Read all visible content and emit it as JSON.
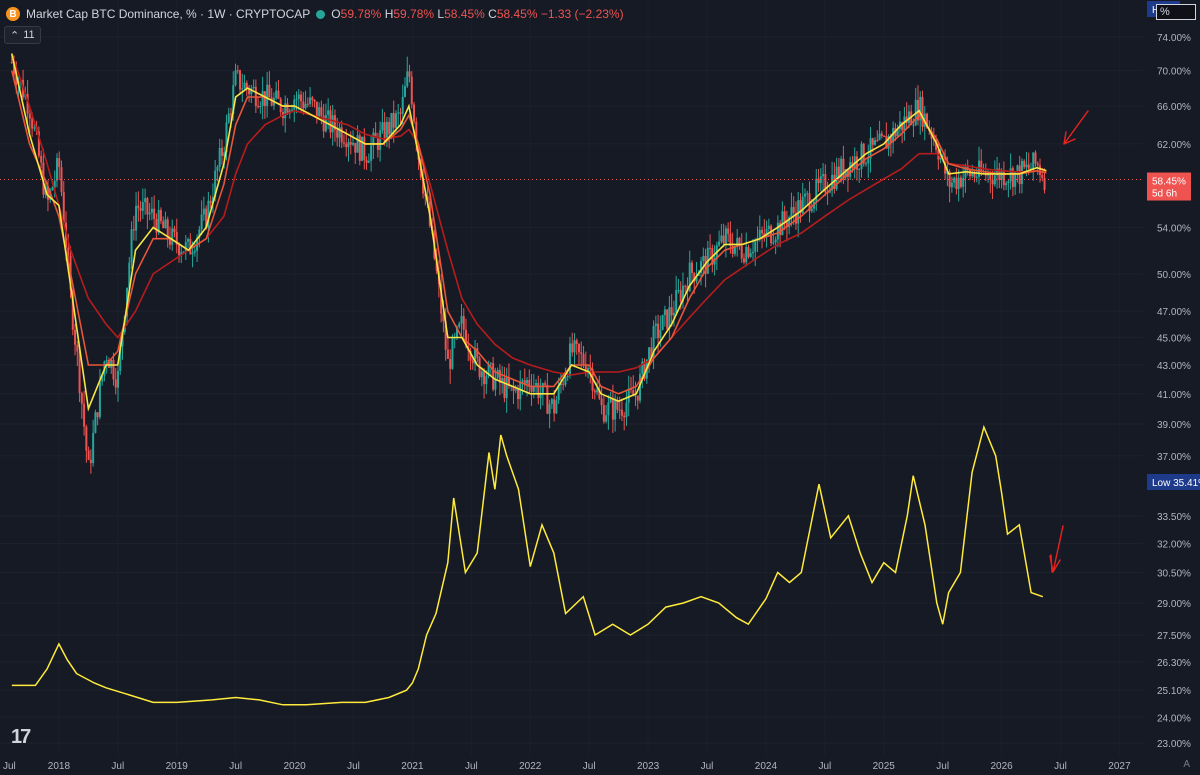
{
  "legend": {
    "icon": "B",
    "title": "Market Cap BTC Dominance, % · 1W · CRYPTOCAP",
    "o_label": "O",
    "o_value": "59.78%",
    "h_label": "H",
    "h_value": "59.78%",
    "l_label": "L",
    "l_value": "58.45%",
    "c_label": "C",
    "c_value": "58.45%",
    "change": "−1.33 (−2.23%)",
    "study_count": "11"
  },
  "scale_input": "%",
  "price_scale": {
    "labels": [
      "74.00%",
      "70.00%",
      "66.00%",
      "62.00%",
      "54.00%",
      "50.00%",
      "47.00%",
      "45.00%",
      "43.00%",
      "41.00%",
      "39.00%",
      "37.00%",
      "33.50%",
      "32.00%",
      "30.50%",
      "29.00%",
      "27.50%",
      "26.30%",
      "25.10%",
      "24.00%",
      "23.00%"
    ],
    "high_label": "High",
    "low_label": "Low",
    "low_value": "35.41%",
    "last_value": "58.45%",
    "countdown": "5d 6h"
  },
  "time_axis": [
    "Jul",
    "2018",
    "Jul",
    "2019",
    "Jul",
    "2020",
    "Jul",
    "2021",
    "Jul",
    "2022",
    "Jul",
    "2023",
    "Jul",
    "2024",
    "Jul",
    "2025",
    "Jul",
    "2026",
    "Jul",
    "2027"
  ],
  "bottom_right": "A",
  "colors": {
    "background": "#161a25",
    "up": "#26a69a",
    "down": "#ef5350",
    "fast_ma": "#f5e642",
    "mid_ma": "#e8563a",
    "slow_ma": "#b71c1c",
    "overlay": "#ffeb3b",
    "grid": "#2a2e39",
    "annotation": "#e8231f"
  },
  "chart_data": {
    "type": "candlestick",
    "title": "Market Cap BTC Dominance, % · 1W · CRYPTOCAP",
    "timeframe": "1W",
    "x": [
      2017.6,
      2017.75,
      2017.9,
      2018.0,
      2018.1,
      2018.25,
      2018.4,
      2018.5,
      2018.65,
      2018.8,
      2018.95,
      2019.1,
      2019.25,
      2019.4,
      2019.5,
      2019.6,
      2019.75,
      2019.9,
      2020.0,
      2020.15,
      2020.3,
      2020.45,
      2020.6,
      2020.75,
      2020.9,
      2020.97,
      2021.05,
      2021.15,
      2021.3,
      2021.42,
      2021.55,
      2021.7,
      2021.85,
      2022.0,
      2022.2,
      2022.35,
      2022.5,
      2022.6,
      2022.75,
      2022.9,
      2023.05,
      2023.2,
      2023.35,
      2023.5,
      2023.65,
      2023.8,
      2023.95,
      2024.1,
      2024.3,
      2024.5,
      2024.7,
      2024.85,
      2025.0,
      2025.15,
      2025.3,
      2025.45,
      2025.55,
      2025.7,
      2025.85,
      2026.0,
      2026.15,
      2026.3,
      2026.38
    ],
    "y": [
      71,
      66,
      56,
      60,
      48,
      36,
      44,
      42,
      56,
      55,
      53,
      52,
      55,
      62,
      69,
      68,
      67,
      66,
      67,
      66,
      64,
      63,
      61,
      63,
      65,
      70,
      61,
      54,
      43,
      46,
      43,
      42,
      41,
      42,
      40,
      44,
      43,
      40,
      40,
      41,
      45,
      47,
      50,
      51,
      53,
      52,
      53,
      54,
      56,
      58,
      60,
      61,
      62,
      64,
      66,
      62,
      58,
      59,
      59,
      59,
      59,
      60,
      58.45
    ],
    "ma_fast": [
      72,
      63,
      57,
      56,
      49,
      40,
      43,
      43,
      52,
      54,
      53,
      52,
      54,
      60,
      67,
      68,
      67,
      66,
      66,
      65,
      64,
      63,
      62,
      62,
      64,
      66,
      61,
      55,
      45,
      45,
      43,
      42,
      41.5,
      41,
      41,
      43,
      42.5,
      41,
      40.5,
      41,
      44,
      46,
      49,
      51,
      52.5,
      52.5,
      53,
      54,
      55.5,
      57.5,
      59.5,
      61,
      62,
      64,
      65.5,
      62,
      59,
      59.2,
      59,
      59,
      59,
      59.6,
      59.3
    ],
    "ma_mid": [
      70,
      62,
      58,
      55,
      50,
      43,
      43,
      44,
      50,
      53,
      53,
      52,
      53,
      58,
      64,
      67,
      67,
      66,
      66,
      65,
      64,
      63,
      62,
      62,
      63.5,
      65,
      62,
      57,
      47,
      45,
      44,
      42.5,
      42,
      41.5,
      41.5,
      43,
      43,
      41.5,
      41,
      41.5,
      43.5,
      45,
      48,
      50.5,
      52,
      52.5,
      53,
      53.5,
      55,
      57,
      59,
      60.5,
      61.5,
      63,
      65,
      62.5,
      60,
      59.5,
      59.2,
      59,
      59,
      59.3,
      59.1
    ],
    "ma_slow": [
      72,
      66,
      60,
      56,
      52,
      48,
      46,
      45,
      47,
      50,
      51,
      52,
      53,
      55,
      59,
      62,
      64,
      65,
      65.5,
      65,
      64.5,
      64,
      63,
      62.5,
      62.8,
      63.5,
      62,
      58,
      52,
      48,
      46,
      44.5,
      43.5,
      43,
      42.5,
      42.3,
      42.5,
      42.5,
      42.5,
      42.8,
      43.5,
      45,
      46.5,
      48,
      49.5,
      50.5,
      51.5,
      52.5,
      53.5,
      55,
      56.5,
      57.5,
      58.5,
      59.5,
      61,
      61,
      60,
      59.8,
      59.5,
      59.3,
      59.2,
      59.3,
      59.2
    ],
    "overlay_line": {
      "name": "",
      "x": [
        2017.6,
        2017.8,
        2017.9,
        2018.0,
        2018.07,
        2018.15,
        2018.3,
        2018.4,
        2018.6,
        2018.8,
        2019.0,
        2019.3,
        2019.5,
        2019.7,
        2019.9,
        2020.1,
        2020.4,
        2020.6,
        2020.8,
        2020.95,
        2021.0,
        2021.05,
        2021.12,
        2021.2,
        2021.3,
        2021.35,
        2021.45,
        2021.55,
        2021.65,
        2021.7,
        2021.75,
        2021.8,
        2021.9,
        2022.0,
        2022.1,
        2022.2,
        2022.3,
        2022.45,
        2022.55,
        2022.7,
        2022.85,
        2023.0,
        2023.15,
        2023.3,
        2023.45,
        2023.6,
        2023.75,
        2023.85,
        2024.0,
        2024.1,
        2024.2,
        2024.3,
        2024.45,
        2024.55,
        2024.7,
        2024.8,
        2024.9,
        2025.0,
        2025.1,
        2025.2,
        2025.25,
        2025.35,
        2025.45,
        2025.5,
        2025.55,
        2025.65,
        2025.75,
        2025.85,
        2025.95,
        2026.0,
        2026.05,
        2026.15,
        2026.25,
        2026.35
      ],
      "y": [
        25.3,
        25.3,
        26.0,
        27.1,
        26.4,
        25.8,
        25.4,
        25.2,
        24.9,
        24.6,
        24.6,
        24.7,
        24.8,
        24.7,
        24.5,
        24.5,
        24.6,
        24.6,
        24.8,
        25.1,
        25.4,
        26.0,
        27.5,
        28.5,
        31.0,
        34.5,
        30.5,
        31.5,
        37.2,
        35.0,
        38.3,
        37.0,
        35.0,
        30.8,
        33.0,
        31.5,
        28.5,
        29.3,
        27.5,
        28.0,
        27.5,
        28.0,
        28.8,
        29.0,
        29.3,
        29.0,
        28.3,
        28.0,
        29.2,
        30.5,
        30.0,
        30.5,
        35.3,
        32.3,
        33.5,
        31.5,
        30.0,
        31.0,
        30.5,
        33.5,
        35.8,
        33.0,
        29.0,
        28.0,
        29.5,
        30.5,
        36.0,
        38.8,
        37.0,
        34.8,
        32.5,
        33.0,
        29.5,
        29.3
      ]
    },
    "y_axis_unit": "%",
    "ylim": [
      23.0,
      74.0
    ],
    "xlim": [
      2017.5,
      2027.2
    ],
    "last_price": 58.45,
    "grid": true
  }
}
